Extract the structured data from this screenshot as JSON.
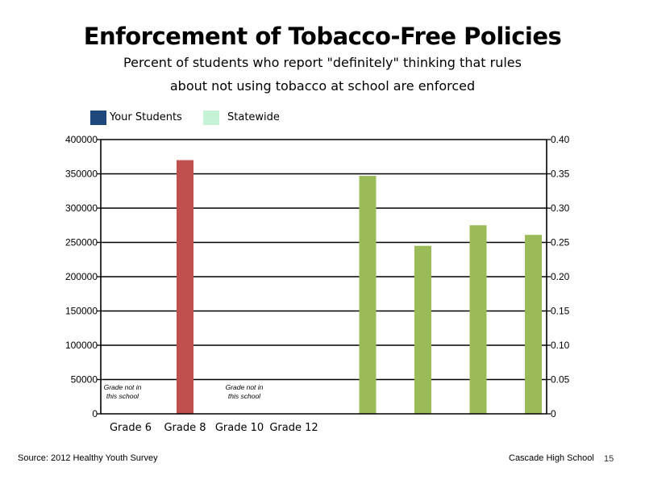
{
  "slide": {
    "title": "Enforcement of Tobacco-Free Policies",
    "subtitle_line1": "Percent of students who report \"definitely\" thinking that rules",
    "subtitle_line2": "about not using tobacco at school are enforced",
    "source": "Source: 2012 Healthy Youth Survey",
    "school": "Cascade High School",
    "page_number": "15"
  },
  "legend": {
    "items": [
      {
        "label": "Your Students",
        "color": "#1f497d"
      },
      {
        "label": "Statewide",
        "color": "#c6f2d8"
      }
    ]
  },
  "chart_data": {
    "type": "bar",
    "categories": [
      "Grade 6",
      "Grade 8",
      "Grade 10",
      "Grade 12"
    ],
    "left_axis": {
      "ylim": [
        0,
        400000
      ],
      "ticks": [
        "0",
        "50000",
        "100000",
        "150000",
        "200000",
        "250000",
        "300000",
        "350000",
        "400000"
      ]
    },
    "right_axis": {
      "ylim": [
        0,
        0.4
      ],
      "ticks": [
        "0",
        "0.05",
        "0.10",
        "0.15",
        "0.20",
        "0.25",
        "0.30",
        "0.35",
        "0.40"
      ]
    },
    "grid": true,
    "series": [
      {
        "color": "#c0504d",
        "axis": "left",
        "values": [
          null,
          370000,
          null,
          null
        ]
      },
      {
        "color": "#9bbb59",
        "axis": "right",
        "values": [
          0.347,
          0.245,
          0.275,
          0.261
        ]
      }
    ],
    "annotations": [
      {
        "category": "Grade 6",
        "text_line1": "Grade not in",
        "text_line2": "this school"
      },
      {
        "category": "Grade 10",
        "text_line1": "Grade not in",
        "text_line2": "this school"
      }
    ]
  }
}
